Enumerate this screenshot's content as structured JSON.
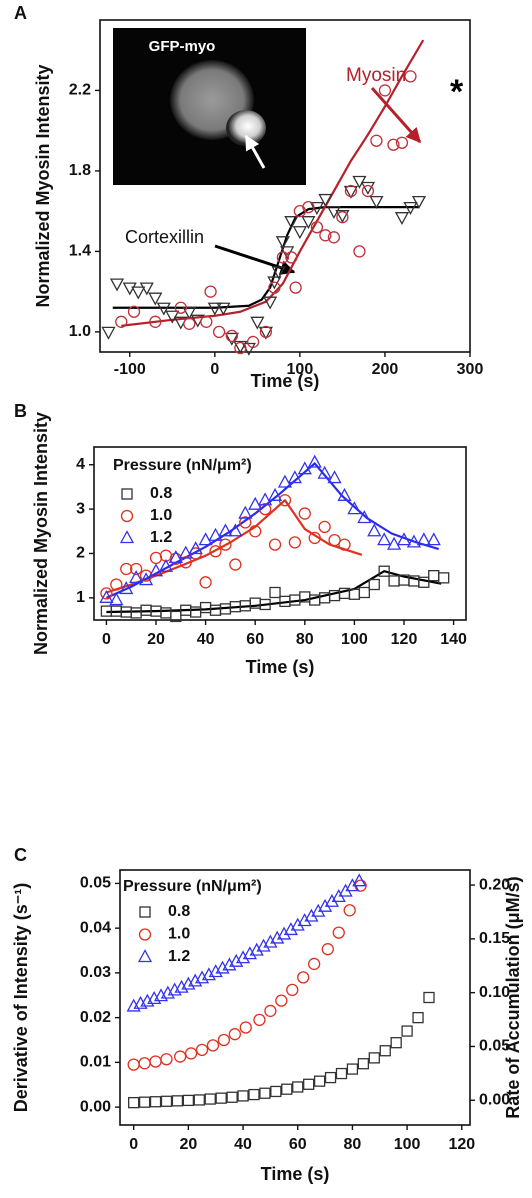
{
  "chart_data": [
    {
      "type": "scatter",
      "panel_label": "A",
      "xlabel": "Time (s)",
      "ylabel": "Normalized Myosin Intensity",
      "inset_label": "GFP-myo",
      "annotations": [
        "Cortexillin",
        "Myosin",
        "*"
      ],
      "xlim": [
        -135,
        300
      ],
      "ylim": [
        0.9,
        2.55
      ],
      "xticks": [
        -100,
        0,
        100,
        200,
        300
      ],
      "yticks": [
        {
          "value": 1,
          "label": "1.0"
        },
        1.4,
        1.8,
        2.2
      ],
      "series": [
        {
          "style": "line",
          "color": "#000000",
          "x": [
            -120,
            -60,
            0,
            40,
            55,
            65,
            75,
            85,
            95,
            110,
            130,
            240
          ],
          "values": [
            1.12,
            1.12,
            1.12,
            1.13,
            1.16,
            1.22,
            1.35,
            1.48,
            1.57,
            1.61,
            1.62,
            1.62
          ]
        },
        {
          "style": "line",
          "color": "#b5202a",
          "x": [
            -110,
            -50,
            0,
            30,
            60,
            80,
            100,
            120,
            140,
            160,
            180,
            200,
            220,
            245
          ],
          "values": [
            1.03,
            1.06,
            1.08,
            1.1,
            1.15,
            1.24,
            1.4,
            1.55,
            1.7,
            1.85,
            1.98,
            2.12,
            2.27,
            2.45
          ]
        },
        {
          "style": "markers",
          "marker": "triangle-down",
          "color": "#333333",
          "x": [
            -125,
            -115,
            -100,
            -90,
            -80,
            -70,
            -60,
            -50,
            -40,
            -30,
            -20,
            0,
            10,
            20,
            30,
            40,
            50,
            60,
            65,
            70,
            75,
            80,
            85,
            90,
            100,
            110,
            120,
            130,
            140,
            150,
            160,
            170,
            180,
            190,
            220,
            230,
            240
          ],
          "values": [
            1.0,
            1.24,
            1.22,
            1.2,
            1.22,
            1.17,
            1.12,
            1.08,
            1.05,
            1.1,
            1.06,
            1.12,
            1.12,
            0.97,
            0.93,
            0.92,
            1.05,
            1.0,
            1.15,
            1.25,
            1.3,
            1.45,
            1.4,
            1.55,
            1.5,
            1.55,
            1.62,
            1.66,
            1.6,
            1.58,
            1.7,
            1.75,
            1.72,
            1.65,
            1.57,
            1.62,
            1.65
          ]
        },
        {
          "style": "markers",
          "marker": "circle",
          "color": "#c0303a",
          "x": [
            -110,
            -95,
            -70,
            -40,
            -30,
            -10,
            -5,
            5,
            20,
            30,
            45,
            60,
            70,
            80,
            90,
            95,
            100,
            110,
            120,
            130,
            140,
            150,
            160,
            170,
            180,
            190,
            200,
            210,
            220,
            230
          ],
          "values": [
            1.05,
            1.1,
            1.05,
            1.12,
            1.04,
            1.05,
            1.2,
            1.0,
            0.98,
            0.92,
            0.95,
            1.0,
            1.22,
            1.37,
            1.37,
            1.22,
            1.6,
            1.62,
            1.52,
            1.48,
            1.47,
            1.57,
            1.7,
            1.4,
            1.7,
            1.95,
            2.2,
            1.93,
            1.94,
            2.27
          ]
        }
      ]
    },
    {
      "type": "scatter",
      "panel_label": "B",
      "xlabel": "Time (s)",
      "ylabel": "Normalized Myosin Intensity",
      "legend_title": "Pressure (nN/μm²)",
      "legend": "upper left",
      "xlim": [
        -5,
        145
      ],
      "ylim": [
        0.5,
        4.4
      ],
      "xticks": [
        0,
        20,
        40,
        60,
        80,
        100,
        120,
        140
      ],
      "yticks": [
        1,
        2,
        3,
        4
      ],
      "series": [
        {
          "style": "line",
          "color": "#000000",
          "x": [
            0,
            20,
            40,
            60,
            80,
            100,
            112,
            120,
            135
          ],
          "values": [
            0.68,
            0.7,
            0.74,
            0.82,
            0.95,
            1.2,
            1.6,
            1.48,
            1.32
          ]
        },
        {
          "style": "line",
          "color": "#e03020",
          "x": [
            0,
            10,
            20,
            30,
            40,
            50,
            60,
            72,
            80,
            90,
            103
          ],
          "values": [
            1.12,
            1.3,
            1.5,
            1.72,
            1.95,
            2.25,
            2.6,
            3.2,
            2.55,
            2.2,
            1.97
          ]
        },
        {
          "style": "line",
          "color": "#2a2aee",
          "x": [
            0,
            10,
            20,
            30,
            40,
            50,
            60,
            70,
            84,
            95,
            105,
            115,
            125,
            134
          ],
          "values": [
            1.0,
            1.25,
            1.55,
            1.85,
            2.15,
            2.5,
            2.9,
            3.35,
            4.03,
            3.3,
            2.8,
            2.45,
            2.25,
            2.1
          ]
        },
        {
          "name": "0.8",
          "style": "markers",
          "marker": "square",
          "color": "#333333",
          "x": [
            0,
            4,
            8,
            12,
            16,
            20,
            24,
            28,
            32,
            36,
            40,
            44,
            48,
            52,
            56,
            60,
            64,
            68,
            72,
            76,
            80,
            84,
            88,
            92,
            96,
            100,
            104,
            108,
            112,
            116,
            120,
            124,
            128,
            132,
            136
          ],
          "values": [
            0.7,
            0.7,
            0.68,
            0.66,
            0.72,
            0.7,
            0.66,
            0.58,
            0.72,
            0.68,
            0.78,
            0.72,
            0.75,
            0.8,
            0.82,
            0.88,
            0.85,
            1.12,
            0.92,
            0.95,
            1.02,
            0.95,
            1.0,
            1.05,
            1.1,
            1.08,
            1.12,
            1.3,
            1.6,
            1.38,
            1.4,
            1.38,
            1.35,
            1.5,
            1.45
          ]
        },
        {
          "name": "1.0",
          "style": "markers",
          "marker": "circle",
          "color": "#e03020",
          "x": [
            0,
            4,
            8,
            12,
            16,
            20,
            24,
            28,
            32,
            36,
            40,
            44,
            48,
            52,
            56,
            60,
            64,
            68,
            72,
            76,
            80,
            84,
            88,
            92,
            96
          ],
          "values": [
            1.1,
            1.3,
            1.65,
            1.65,
            1.5,
            1.9,
            1.95,
            1.88,
            1.8,
            2.0,
            1.35,
            2.05,
            2.2,
            1.75,
            2.7,
            2.5,
            3.0,
            2.2,
            3.2,
            2.25,
            2.9,
            2.35,
            2.6,
            2.3,
            2.2
          ]
        },
        {
          "name": "1.2",
          "style": "markers",
          "marker": "triangle-up",
          "color": "#3333ee",
          "x": [
            0,
            4,
            8,
            12,
            16,
            20,
            24,
            28,
            32,
            36,
            40,
            44,
            48,
            52,
            56,
            60,
            64,
            68,
            72,
            76,
            80,
            84,
            88,
            92,
            96,
            100,
            104,
            108,
            112,
            116,
            120,
            124,
            128,
            132
          ],
          "values": [
            1.0,
            0.95,
            1.2,
            1.45,
            1.4,
            1.6,
            1.7,
            1.9,
            2.0,
            2.1,
            2.3,
            2.4,
            2.5,
            2.5,
            2.9,
            3.1,
            3.2,
            3.3,
            3.6,
            3.7,
            3.9,
            4.05,
            3.8,
            3.7,
            3.3,
            3.0,
            2.8,
            2.5,
            2.3,
            2.2,
            2.3,
            2.25,
            2.3,
            2.3
          ]
        }
      ]
    },
    {
      "type": "scatter",
      "panel_label": "C",
      "xlabel": "Time (s)",
      "ylabel": "Derivative of Intensity (s⁻¹)",
      "y2label": "Rate of Accumulation (μM/s)",
      "legend_title": "Pressure (nN/μm²)",
      "legend": "upper left",
      "xlim": [
        -5,
        123
      ],
      "ylim": [
        -0.004,
        0.053
      ],
      "y2lim": [
        -0.023,
        0.214
      ],
      "xticks": [
        0,
        20,
        40,
        60,
        80,
        100,
        120
      ],
      "yticks": [
        {
          "value": 0,
          "label": "0.00"
        },
        0.01,
        0.02,
        0.03,
        0.04,
        0.05
      ],
      "y2ticks": [
        {
          "value": 0,
          "label": "0.00"
        },
        0.05,
        {
          "value": 0.1,
          "label": "0.10"
        },
        0.15,
        {
          "value": 0.2,
          "label": "0.20"
        }
      ],
      "series": [
        {
          "name": "0.8",
          "style": "markers",
          "marker": "square",
          "color": "#333333",
          "x": [
            0,
            4,
            8,
            12,
            16,
            20,
            24,
            28,
            32,
            36,
            40,
            44,
            48,
            52,
            56,
            60,
            64,
            68,
            72,
            76,
            80,
            84,
            88,
            92,
            96,
            100,
            104,
            108
          ],
          "values": [
            0.001,
            0.0011,
            0.0012,
            0.0013,
            0.0014,
            0.0015,
            0.0016,
            0.0018,
            0.002,
            0.0022,
            0.0025,
            0.0028,
            0.0031,
            0.0035,
            0.004,
            0.0045,
            0.0051,
            0.0058,
            0.0066,
            0.0075,
            0.0085,
            0.0097,
            0.011,
            0.0126,
            0.0144,
            0.017,
            0.02,
            0.0245
          ]
        },
        {
          "name": "1.0",
          "style": "markers",
          "marker": "circle",
          "color": "#e03020",
          "x": [
            0,
            4,
            8,
            12,
            17,
            21,
            25,
            29,
            33,
            37,
            41,
            46,
            50,
            54,
            58,
            62,
            66,
            71,
            75,
            79,
            83
          ],
          "values": [
            0.0095,
            0.0098,
            0.0102,
            0.0107,
            0.0113,
            0.012,
            0.0128,
            0.0138,
            0.015,
            0.0163,
            0.0178,
            0.0195,
            0.0215,
            0.0238,
            0.0262,
            0.029,
            0.032,
            0.0353,
            0.039,
            0.044,
            0.0495
          ]
        },
        {
          "name": "1.2",
          "style": "markers",
          "marker": "triangle-up",
          "color": "#3333ee",
          "x": [
            0,
            2.5,
            5,
            7.5,
            10,
            12.5,
            15,
            17.5,
            20,
            22.5,
            25,
            27.5,
            30,
            32.5,
            35,
            37.5,
            40,
            42.5,
            45,
            47.5,
            50,
            52.5,
            55,
            57.5,
            60,
            62.5,
            65,
            67.5,
            70,
            72.5,
            75,
            77.5,
            80,
            82.5
          ],
          "values": [
            0.0225,
            0.0231,
            0.0236,
            0.0242,
            0.0248,
            0.0254,
            0.0261,
            0.0267,
            0.0274,
            0.0281,
            0.0288,
            0.0295,
            0.0302,
            0.031,
            0.0317,
            0.0325,
            0.0333,
            0.0342,
            0.035,
            0.0359,
            0.0368,
            0.0377,
            0.0386,
            0.0396,
            0.0406,
            0.0416,
            0.0426,
            0.0437,
            0.0448,
            0.0459,
            0.047,
            0.0482,
            0.0494,
            0.0505
          ]
        }
      ]
    }
  ]
}
